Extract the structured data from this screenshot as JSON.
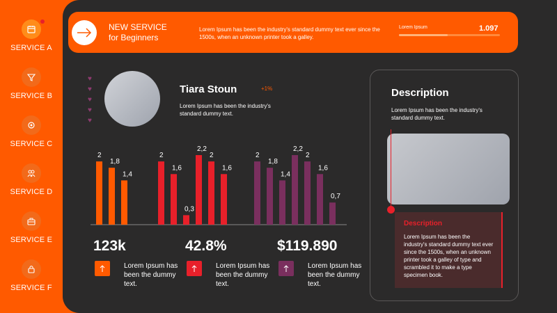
{
  "sidebar": {
    "items": [
      {
        "label": "SERVICE A",
        "icon": "calendar-icon",
        "active": true
      },
      {
        "label": "SERVICE B",
        "icon": "filter-icon"
      },
      {
        "label": "SERVICE C",
        "icon": "settings-icon"
      },
      {
        "label": "SERVICE D",
        "icon": "team-icon"
      },
      {
        "label": "SERVICE E",
        "icon": "toolbox-icon"
      },
      {
        "label": "SERVICE F",
        "icon": "lock-icon"
      }
    ]
  },
  "banner": {
    "title_line1": "NEW SERVICE",
    "title_line2": "for Beginners",
    "text": "Lorem Ipsum has been the industry's standard dummy text ever since the 1500s, when an unknown printer took a galley.",
    "progress_label": "Lorem Ipsum",
    "progress_value": "1.097",
    "progress_fraction": 0.48
  },
  "profile": {
    "name": "Tiara Stoun",
    "badge": "+1%",
    "description": "Lorem Ipsum has been the industry's standard dummy text."
  },
  "chart_data": {
    "type": "bar",
    "groups": [
      {
        "color": "#ff5a00",
        "values": [
          2,
          1.8,
          1.4
        ],
        "labels": [
          "2",
          "1,8",
          "1,4"
        ]
      },
      {
        "color": "#e8202a",
        "values": [
          2,
          1.6,
          0.3,
          2.2,
          2,
          1.6
        ],
        "labels": [
          "2",
          "1,6",
          "0,3",
          "2,2",
          "2",
          "1,6"
        ]
      },
      {
        "color": "#7a2f5e",
        "values": [
          2,
          1.8,
          1.4,
          2.2,
          2,
          1.6,
          0.7
        ],
        "labels": [
          "2",
          "1,8",
          "1,4",
          "2,2",
          "2",
          "1,6",
          "0,7"
        ]
      }
    ],
    "ylim": [
      0,
      2.2
    ],
    "grid": false
  },
  "stats": [
    {
      "value": "123k",
      "text": "Lorem Ipsum has been the dummy text.",
      "color": "#ff5a00",
      "icon": "arrow-up-icon"
    },
    {
      "value": "42.8%",
      "text": "Lorem Ipsum has been the dummy text.",
      "color": "#e8202a",
      "icon": "arrow-up-icon"
    },
    {
      "value": "$119.890",
      "text": "Lorem Ipsum has been the dummy text.",
      "color": "#7a2f5e",
      "icon": "arrow-up-icon"
    }
  ],
  "description_card": {
    "title": "Description",
    "text": "Lorem Ipsum has been the industry's standard dummy text.",
    "sub_title": "Description",
    "sub_text": "Lorem Ipsum has been the industry's standard dummy text ever since the 1500s, when an unknown printer took a galley of type and scrambled it to make a type specimen book."
  },
  "colors": {
    "accent": "#ff5a00",
    "red": "#e8202a",
    "purple": "#7a2f5e",
    "panel": "#2b2a2a"
  }
}
